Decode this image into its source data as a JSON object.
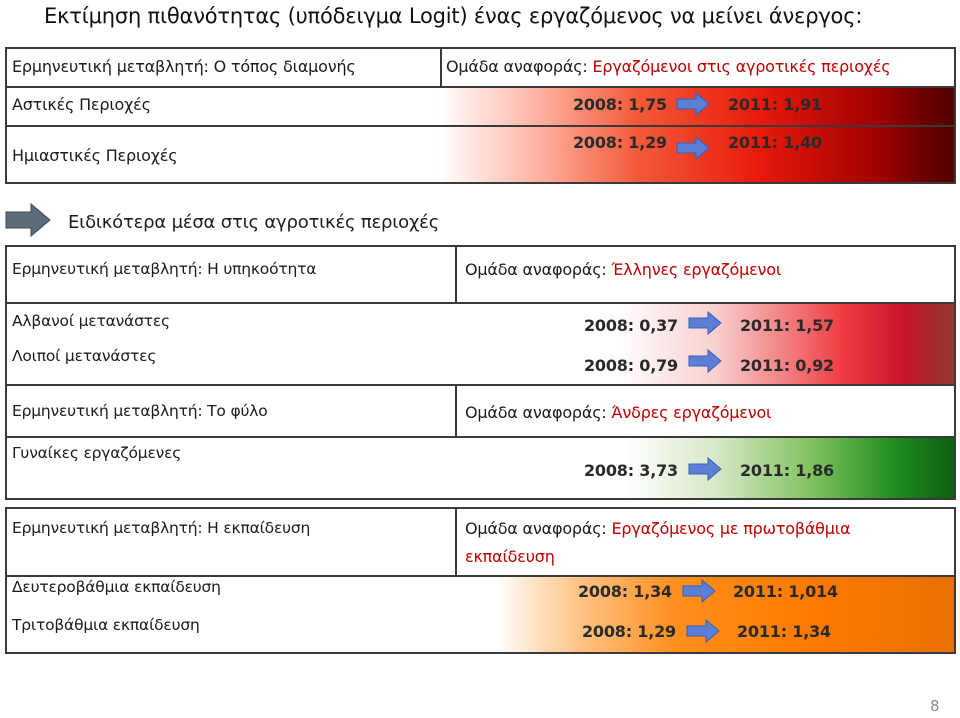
{
  "title": "Εκτίμηση πιθανότητας (υπόδειγμα Logit) ένας εργαζόμενος να μείνει άνεργος:",
  "residence": {
    "variable_label": "Ερμηνευτική μεταβλητή: Ο τόπος διαμονής",
    "reference_prefix": "Ομάδα αναφοράς: ",
    "reference_group": "Εργαζόμενοι στις αγροτικές περιοχές",
    "rows": [
      {
        "label": "Αστικές Περιοχές",
        "v2008": "2008: 1,75",
        "v2011": "2011: 1,91"
      },
      {
        "label": "Ημιαστικές Περιοχές",
        "v2008": "2008: 1,29",
        "v2011": "2011: 1,40"
      }
    ]
  },
  "subheading": "Ειδικότερα μέσα στις αγροτικές περιοχές",
  "citizenship": {
    "variable_label": "Ερμηνευτική μεταβλητή: Η υπηκοότητα",
    "reference_prefix": "Ομάδα αναφοράς: ",
    "reference_group": "Έλληνες εργαζόμενοι",
    "rows": [
      {
        "label": "Αλβανοί μετανάστες",
        "v2008": "2008: 0,37",
        "v2011": "2011: 1,57"
      },
      {
        "label": "Λοιποί μετανάστες",
        "v2008": "2008: 0,79",
        "v2011": "2011: 0,92"
      }
    ]
  },
  "gender": {
    "variable_label": "Ερμηνευτική μεταβλητή: Το φύλο",
    "reference_prefix": "Ομάδα αναφοράς: ",
    "reference_group": "Άνδρες εργαζόμενοι",
    "rows": [
      {
        "label": "Γυναίκες εργαζόμενες",
        "v2008": "2008: 3,73",
        "v2011": "2011: 1,86"
      }
    ]
  },
  "education": {
    "variable_label": "Ερμηνευτική μεταβλητή: Η εκπαίδευση",
    "reference_prefix": "Ομάδα αναφοράς: ",
    "reference_group_line1": "Εργαζόμενος με πρωτοβάθμια",
    "reference_group_line2": "εκπαίδευση",
    "rows": [
      {
        "label": "Δευτεροβάθμια εκπαίδευση",
        "v2008": "2008: 1,34",
        "v2011": "2011: 1,014"
      },
      {
        "label": "Τριτοβάθμια εκπαίδευση",
        "v2008": "2008: 1,29",
        "v2011": "2011: 1,34"
      }
    ]
  },
  "page_number": "8",
  "icons": {
    "arrow": "right-arrow-icon",
    "subheading_arrow": "right-arrow-icon"
  },
  "colors": {
    "highlight_red": "#c00000",
    "arrow_blue": "#5b7fd6",
    "arrow_gray": "#5c6c7a",
    "gradient_red": "#e81a0c",
    "gradient_green": "#1f8c1f",
    "gradient_orange": "#ff7a00"
  }
}
